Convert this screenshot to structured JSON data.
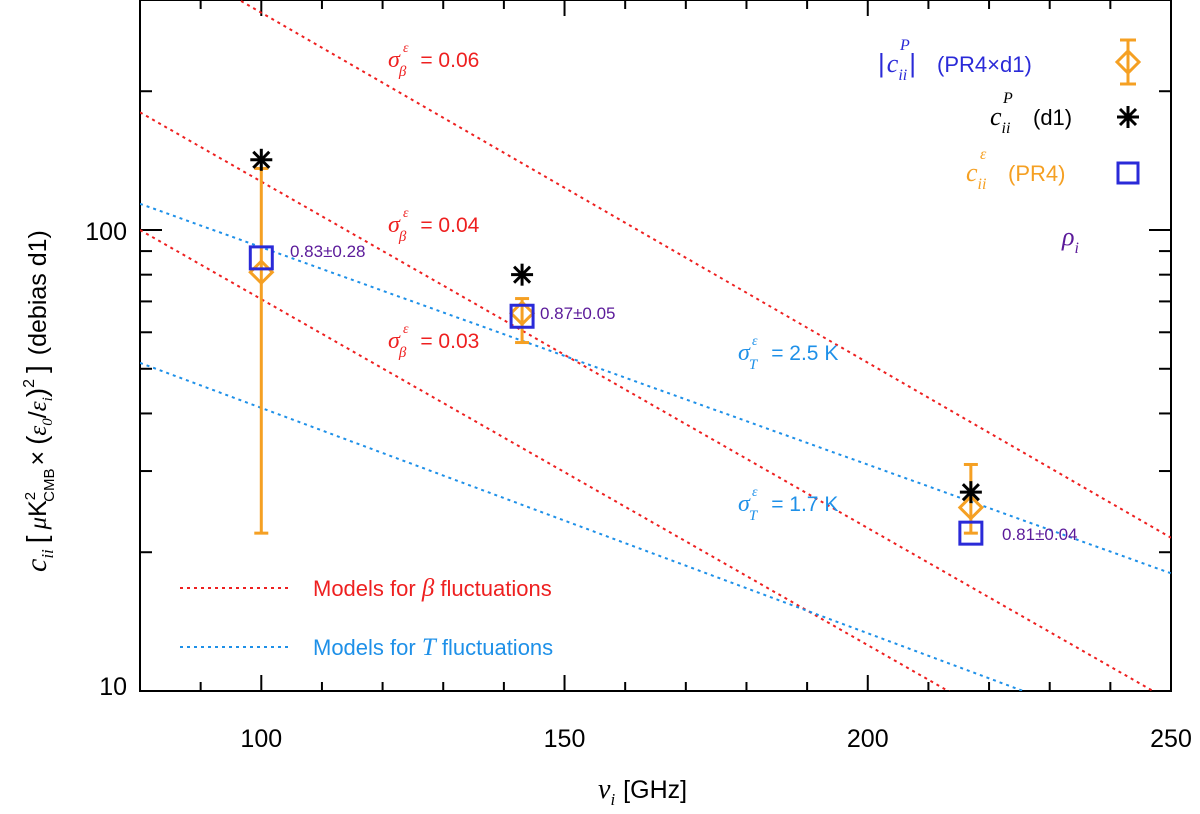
{
  "chart_data": {
    "type": "scatter",
    "xscale": "linear",
    "yscale": "log",
    "xlim": [
      80,
      250
    ],
    "ylim": [
      10,
      300
    ],
    "xlabel": "[GHz]",
    "xlabel_symbol": "ν",
    "xlabel_sub": "i",
    "ylabel": {
      "c": "c",
      "c_sub": "ii",
      "bracket_open": "[",
      "mu": "μ",
      "K": "K",
      "K_sup": "2",
      "K_sub": "CMB",
      "times": "×",
      "paren_open": "(",
      "eps0": "ε",
      "eps0_sub": "0",
      "slash": "/",
      "epsi": "ε",
      "epsi_sub": "i",
      "paren_close": ")",
      "sq": "2",
      "bracket_close": "]",
      "suffix": "(debias d1)"
    },
    "x_ticks": [
      100,
      150,
      200,
      250
    ],
    "x_tick_labels": [
      "100",
      "150",
      "200",
      "250"
    ],
    "x_minor_step": 10,
    "y_ticks": [
      10,
      100
    ],
    "y_tick_labels": [
      "10",
      "100"
    ],
    "series": [
      {
        "name": "|c_ii^P| (PR4×d1)",
        "marker": "diamond",
        "color": "#f5a023",
        "x": [
          100,
          143,
          217
        ],
        "y": [
          81,
          66,
          25
        ],
        "yerr_low": [
          22,
          57,
          22
        ],
        "yerr_high": [
          136,
          71,
          31
        ]
      },
      {
        "name": "c_ii^P (d1)",
        "marker": "asterisk",
        "color": "#000000",
        "x": [
          100,
          143,
          217
        ],
        "y": [
          142,
          80,
          27
        ]
      },
      {
        "name": "c_ii^ε (PR4)",
        "marker": "square",
        "color": "#2a2ad8",
        "x": [
          100,
          143,
          217
        ],
        "y": [
          87,
          65,
          22
        ]
      }
    ],
    "model_lines": [
      {
        "family": "beta",
        "label_symbol": "σ",
        "label_sup": "ε",
        "label_sub": "β",
        "label_value": "= 0.06",
        "color": "#ee2020",
        "x": [
          80,
          250
        ],
        "y": [
          420,
          21.5
        ]
      },
      {
        "family": "beta",
        "label_symbol": "σ",
        "label_sup": "ε",
        "label_sub": "β",
        "label_value": "= 0.04",
        "color": "#ee2020",
        "x": [
          80,
          250
        ],
        "y": [
          180,
          9.5
        ]
      },
      {
        "family": "beta",
        "label_symbol": "σ",
        "label_sup": "ε",
        "label_sub": "β",
        "label_value": "= 0.03",
        "color": "#ee2020",
        "x": [
          80,
          250
        ],
        "y": [
          100,
          5.3
        ]
      },
      {
        "family": "T",
        "label_symbol": "σ",
        "label_sup": "ε",
        "label_sub": "T",
        "label_value": "= 2.5 K",
        "color": "#1e90e8",
        "x": [
          80,
          250
        ],
        "y": [
          114,
          18
        ]
      },
      {
        "family": "T",
        "label_symbol": "σ",
        "label_sup": "ε",
        "label_sub": "T",
        "label_value": "= 1.7 K",
        "color": "#1e90e8",
        "x": [
          80,
          250
        ],
        "y": [
          51.5,
          7.6
        ]
      }
    ],
    "rho_annotations": [
      {
        "x": 100,
        "y": 87,
        "text": "0.83±0.28"
      },
      {
        "x": 143,
        "y": 65,
        "text": "0.87±0.05"
      },
      {
        "x": 217,
        "y": 22,
        "text": "0.81±0.04"
      }
    ],
    "legend_top_right": {
      "entry1": {
        "bar_open": "|",
        "c": "c",
        "sup": "P",
        "sub": "ii",
        "bar_close": "|",
        "text": "(PR4×d1)"
      },
      "entry2": {
        "c": "c",
        "sup": "P",
        "sub": "ii",
        "text": "(d1)"
      },
      "entry3": {
        "c": "c",
        "sup": "ε",
        "sub": "ii",
        "text": "(PR4)"
      },
      "rho": {
        "symbol": "ρ",
        "sub": "i"
      }
    },
    "legend_bottom_left": {
      "beta": {
        "prefix": "Models for",
        "symbol": "β",
        "suffix": "fluctuations"
      },
      "T": {
        "prefix": "Models for",
        "symbol": "T",
        "suffix": "fluctuations"
      }
    },
    "colors": {
      "red": "#ee2020",
      "blue": "#1e90e8",
      "orange": "#f5a023",
      "navy": "#2a2ad8",
      "purple": "#5b1a9a",
      "black": "#000000"
    }
  }
}
